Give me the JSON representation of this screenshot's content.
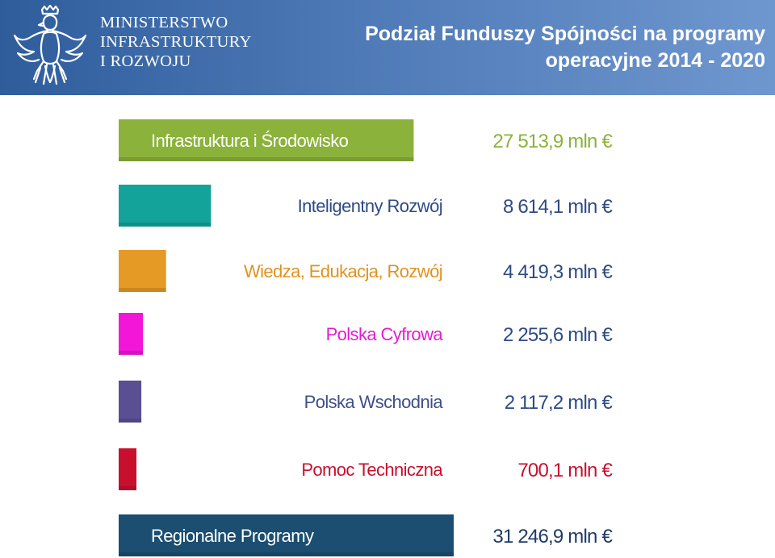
{
  "header": {
    "ministry_lines": [
      "MINISTERSTWO",
      "INFRASTRUKTURY",
      "I ROZWOJU"
    ],
    "title_line1": "Podział Funduszy Spójności na programy",
    "title_line2": "operacyjne 2014 - 2020",
    "logo_icon": "polish-eagle-emblem-icon"
  },
  "chart_data": {
    "type": "bar",
    "orientation": "horizontal",
    "unit": "mln €",
    "categories": [
      "Infrastruktura i Środowisko",
      "Inteligentny Rozwój",
      "Wiedza, Edukacja, Rozwój",
      "Polska Cyfrowa",
      "Polska Wschodnia",
      "Pomoc Techniczna",
      "Regionalne Programy"
    ],
    "values": [
      27513.9,
      8614.1,
      4419.3,
      2255.6,
      2117.2,
      700.1,
      31246.9
    ],
    "value_labels": [
      "27 513,9 mln €",
      "8 614,1 mln €",
      "4 419,3 mln €",
      "2 255,6 mln €",
      "2 117,2 mln €",
      "700,1 mln €",
      "31 246,9 mln €"
    ],
    "colors": [
      "#8bb23a",
      "#13a39a",
      "#e59a25",
      "#f316d9",
      "#5a4f93",
      "#c8102e",
      "#1b4e70"
    ],
    "label_colors": [
      "#ffffff",
      "#2e4b84",
      "#e0921f",
      "#e51bd0",
      "#3e4f8a",
      "#c8102e",
      "#ffffff"
    ],
    "value_colors": [
      "#8bb23a",
      "#2e4b84",
      "#2e4b84",
      "#2e4b84",
      "#2e4b84",
      "#c8102e",
      "#1f3b66"
    ],
    "label_inside": [
      true,
      false,
      false,
      false,
      false,
      false,
      true
    ]
  }
}
